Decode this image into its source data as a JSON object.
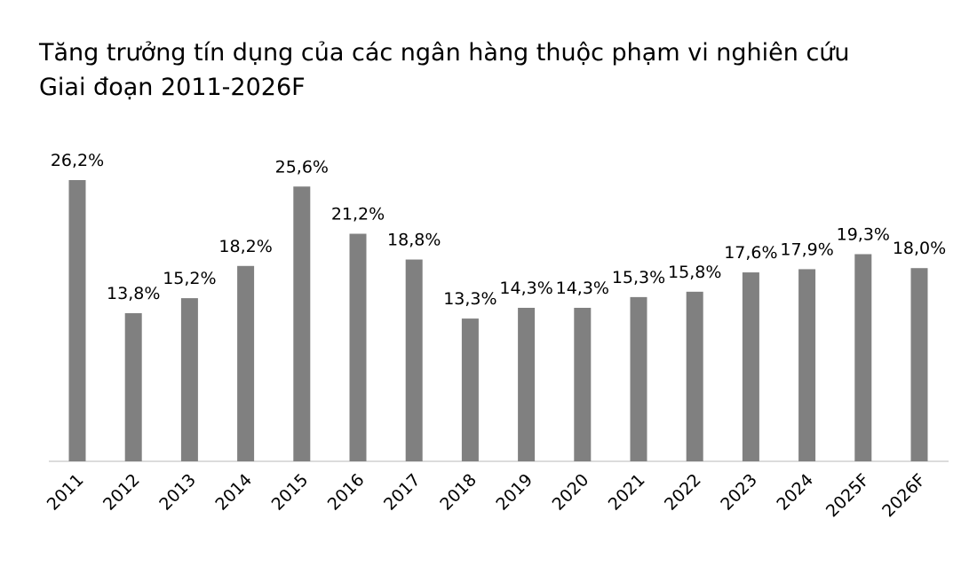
{
  "chart_data": {
    "type": "bar",
    "title": "Tăng trưởng tín dụng của các ngân hàng thuộc phạm vi nghiên cứu",
    "subtitle": "Giai đoạn 2011-2026F",
    "categories": [
      "2011",
      "2012",
      "2013",
      "2014",
      "2015",
      "2016",
      "2017",
      "2018",
      "2019",
      "2020",
      "2021",
      "2022",
      "2023",
      "2024",
      "2025F",
      "2026F"
    ],
    "values": [
      26.2,
      13.8,
      15.2,
      18.2,
      25.6,
      21.2,
      18.8,
      13.3,
      14.3,
      14.3,
      15.3,
      15.8,
      17.6,
      17.9,
      19.3,
      18.0
    ],
    "value_labels": [
      "26,2%",
      "13,8%",
      "15,2%",
      "18,2%",
      "25,6%",
      "21,2%",
      "18,8%",
      "13,3%",
      "14,3%",
      "14,3%",
      "15,3%",
      "15,8%",
      "17,6%",
      "17,9%",
      "19,3%",
      "18,0%"
    ],
    "color": "#808080"
  }
}
